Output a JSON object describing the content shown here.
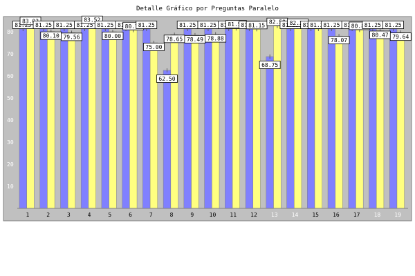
{
  "chart_data": {
    "type": "bar",
    "title": "Detalle Gráfico por Preguntas Paralelo",
    "categories": [
      "1",
      "2",
      "3",
      "4",
      "5",
      "6",
      "7",
      "8",
      "9",
      "10",
      "11",
      "12",
      "13",
      "14",
      "15",
      "16",
      "17",
      "18",
      "19"
    ],
    "ylim": [
      0,
      85
    ],
    "yticks": [
      10,
      20,
      30,
      40,
      50,
      60,
      70,
      80
    ],
    "grid": false,
    "legend": "none",
    "series": [
      {
        "color": "#8080ff",
        "values": [
          81.25,
          81.25,
          81.25,
          81.25,
          81.25,
          81.25,
          81.25,
          62.5,
          81.25,
          81.25,
          81.25,
          81.25,
          68.75,
          81.25,
          81.25,
          81.25,
          81.25,
          81.25,
          81.25
        ]
      },
      {
        "color": "#ffff80",
        "values": [
          83.03,
          80.1,
          79.56,
          83.52,
          80.0,
          80.7,
          75.0,
          78.65,
          78.49,
          78.88,
          81.5,
          81.15,
          82.59,
          82.2,
          81.27,
          78.07,
          80.8,
          80.47,
          79.64
        ]
      }
    ]
  },
  "colors": {
    "plot_bg": "#c0c0c0",
    "bar_edge": "#808080",
    "frame": "#808080"
  }
}
